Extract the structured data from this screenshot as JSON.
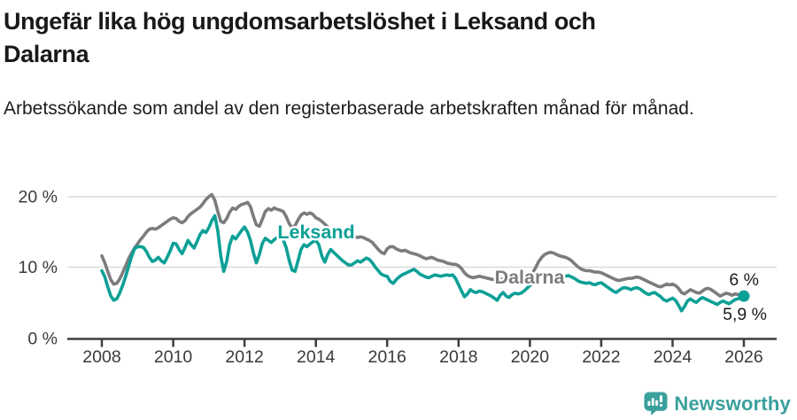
{
  "header": {
    "title": "Ungefär lika hög ungdomsarbetslöshet i Leksand och Dalarna",
    "subtitle": "Arbetssökande som andel av den registerbaserade arbetskraften månad för månad."
  },
  "chart_data": {
    "type": "line",
    "x_unit": "month",
    "x_start_year": 2008,
    "x_end_year": 2026,
    "x_tick_labels": [
      "2008",
      "2010",
      "2012",
      "2014",
      "2016",
      "2018",
      "2020",
      "2022",
      "2024",
      "2026"
    ],
    "y_tick_labels": [
      "0 %",
      "10 %",
      "20 %"
    ],
    "y_axis_values": [
      0,
      10,
      20
    ],
    "ylim": [
      0,
      22
    ],
    "grid": "horizontal",
    "series": [
      {
        "name": "Leksand",
        "color": "#0da096",
        "last_value_label": "5,9 %",
        "values": [
          9.5,
          8.6,
          7.2,
          5.9,
          5.3,
          5.5,
          6.3,
          7.4,
          8.7,
          10.1,
          11.5,
          12.6,
          12.9,
          12.9,
          12.8,
          12.2,
          11.4,
          10.8,
          11.0,
          11.4,
          10.9,
          10.6,
          11.4,
          12.3,
          13.4,
          13.3,
          12.5,
          11.9,
          12.8,
          13.8,
          13.2,
          12.7,
          13.6,
          14.6,
          15.2,
          14.9,
          15.6,
          16.6,
          17.3,
          15.2,
          11.6,
          9.4,
          10.8,
          13.2,
          14.4,
          14.0,
          14.6,
          15.2,
          15.7,
          15.0,
          13.8,
          12.0,
          10.6,
          11.8,
          13.4,
          14.1,
          13.8,
          13.5,
          13.9,
          14.2,
          14.3,
          13.9,
          12.8,
          11.0,
          9.6,
          9.4,
          10.9,
          12.5,
          13.2,
          12.9,
          13.3,
          13.6,
          13.8,
          13.2,
          11.6,
          10.7,
          11.8,
          12.5,
          12.1,
          11.7,
          11.3,
          10.9,
          10.6,
          10.3,
          10.3,
          10.6,
          10.9,
          10.7,
          11.0,
          11.3,
          11.1,
          10.6,
          10.0,
          9.5,
          9.0,
          8.8,
          8.7,
          8.0,
          7.7,
          8.2,
          8.6,
          8.9,
          9.1,
          9.3,
          9.5,
          9.7,
          9.4,
          9.0,
          8.8,
          8.6,
          8.5,
          8.7,
          8.9,
          8.8,
          8.7,
          8.8,
          8.9,
          8.8,
          8.9,
          8.4,
          7.5,
          6.6,
          5.8,
          6.2,
          6.8,
          6.5,
          6.4,
          6.6,
          6.5,
          6.3,
          6.1,
          5.9,
          5.6,
          5.3,
          6.0,
          6.4,
          5.9,
          5.7,
          6.1,
          6.3,
          6.2,
          6.3,
          6.6,
          7.0,
          7.4,
          7.8,
          8.2,
          8.6,
          8.9,
          8.8,
          8.6,
          8.5,
          8.4,
          8.3,
          8.4,
          8.6,
          8.7,
          8.8,
          8.6,
          8.4,
          8.1,
          7.9,
          7.8,
          7.7,
          7.8,
          7.6,
          7.5,
          7.7,
          7.8,
          7.5,
          7.2,
          6.9,
          6.6,
          6.4,
          6.7,
          7.0,
          7.1,
          7.0,
          6.8,
          7.0,
          7.1,
          6.9,
          6.6,
          6.3,
          6.1,
          6.3,
          6.4,
          6.1,
          5.8,
          5.4,
          5.2,
          5.4,
          5.6,
          5.3,
          4.6,
          3.8,
          4.4,
          5.2,
          5.5,
          5.2,
          5.0,
          5.4,
          5.7,
          5.5,
          5.3,
          5.1,
          4.9,
          4.7,
          5.0,
          5.2,
          5.0,
          4.8,
          5.1,
          5.4,
          5.5,
          5.7,
          5.9
        ]
      },
      {
        "name": "Dalarna",
        "color": "#7c7c80",
        "last_value_label": "6 %",
        "values": [
          11.6,
          10.6,
          9.4,
          8.2,
          7.6,
          7.7,
          8.3,
          9.2,
          10.2,
          11.2,
          12.0,
          12.7,
          13.3,
          13.9,
          14.4,
          15.0,
          15.4,
          15.5,
          15.4,
          15.6,
          15.9,
          16.2,
          16.5,
          16.8,
          17.0,
          16.9,
          16.5,
          16.3,
          16.6,
          17.2,
          17.6,
          17.9,
          18.2,
          18.5,
          19.0,
          19.6,
          20.0,
          20.3,
          19.5,
          17.9,
          16.5,
          16.3,
          16.9,
          17.8,
          18.4,
          18.2,
          18.6,
          18.9,
          19.0,
          19.2,
          18.6,
          17.2,
          16.0,
          15.8,
          16.8,
          17.9,
          18.3,
          18.1,
          18.4,
          18.2,
          18.1,
          17.9,
          17.2,
          16.2,
          15.6,
          15.9,
          16.7,
          17.4,
          17.7,
          17.5,
          17.7,
          17.5,
          17.0,
          16.8,
          16.5,
          16.1,
          15.7,
          15.4,
          15.1,
          14.9,
          14.8,
          14.7,
          14.6,
          14.5,
          14.4,
          14.3,
          14.2,
          14.3,
          14.2,
          14.0,
          13.8,
          13.5,
          13.0,
          12.5,
          12.1,
          11.9,
          12.6,
          12.9,
          12.9,
          12.6,
          12.4,
          12.3,
          12.4,
          12.2,
          12.0,
          11.9,
          11.8,
          11.6,
          11.4,
          11.2,
          11.3,
          11.4,
          11.2,
          11.0,
          10.9,
          10.8,
          10.6,
          10.5,
          10.4,
          10.4,
          10.2,
          9.8,
          9.2,
          8.8,
          8.6,
          8.5,
          8.6,
          8.7,
          8.6,
          8.5,
          8.4,
          8.3,
          8.2,
          8.3,
          8.4,
          8.3,
          8.2,
          8.3,
          8.4,
          8.3,
          8.4,
          8.5,
          8.5,
          8.6,
          8.8,
          9.2,
          10.0,
          10.8,
          11.4,
          11.8,
          12.0,
          12.1,
          12.0,
          11.8,
          11.6,
          11.5,
          11.4,
          11.2,
          10.9,
          10.5,
          10.1,
          9.8,
          9.6,
          9.5,
          9.5,
          9.4,
          9.3,
          9.3,
          9.2,
          9.0,
          8.8,
          8.6,
          8.4,
          8.2,
          8.1,
          8.2,
          8.3,
          8.4,
          8.4,
          8.5,
          8.6,
          8.5,
          8.3,
          8.1,
          7.9,
          7.7,
          7.5,
          7.3,
          7.2,
          7.4,
          7.6,
          7.5,
          7.6,
          7.4,
          7.0,
          6.4,
          6.2,
          6.5,
          6.8,
          6.6,
          6.4,
          6.3,
          6.6,
          6.9,
          7.0,
          6.8,
          6.5,
          6.2,
          5.9,
          6.1,
          6.3,
          6.2,
          6.0,
          6.2,
          6.1,
          6.1,
          6.0
        ]
      }
    ],
    "colors": {
      "grid": "#d9d9d9",
      "axis": "#3d3d3d",
      "tick_label": "#3a3a3a"
    }
  },
  "footer": {
    "brand": "Newsworthy",
    "brand_color": "#3aa09c"
  }
}
